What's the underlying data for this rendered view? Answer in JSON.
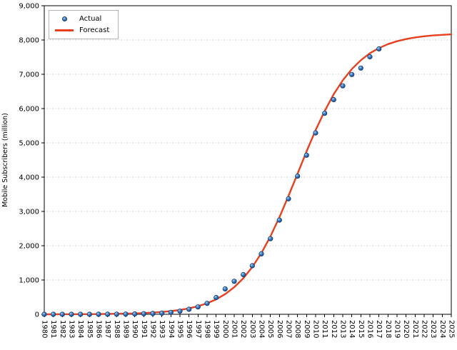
{
  "chart_data": {
    "type": "line",
    "title": "",
    "xlabel": "",
    "ylabel": "Mobile Subscribers (million)",
    "xlim": [
      1980,
      2025
    ],
    "ylim": [
      0,
      9000
    ],
    "y_ticks": [
      0,
      1000,
      2000,
      3000,
      4000,
      5000,
      6000,
      7000,
      8000,
      9000
    ],
    "x_tick_step": 1,
    "grid": "horizontal-dashed",
    "legend_position": "top-left",
    "series": [
      {
        "name": "Actual",
        "type": "scatter",
        "marker": "circle",
        "color": "#2e6db4",
        "x": [
          1980,
          1981,
          1982,
          1983,
          1984,
          1985,
          1986,
          1987,
          1988,
          1989,
          1990,
          1991,
          1992,
          1993,
          1994,
          1995,
          1996,
          1997,
          1998,
          1999,
          2000,
          2001,
          2002,
          2003,
          2004,
          2005,
          2006,
          2007,
          2008,
          2009,
          2010,
          2011,
          2012,
          2013,
          2014,
          2015,
          2016,
          2017
        ],
        "values": [
          0,
          0,
          0,
          0,
          1,
          1,
          2,
          3,
          4,
          7,
          11,
          16,
          23,
          34,
          56,
          91,
          145,
          215,
          318,
          490,
          740,
          962,
          1157,
          1417,
          1763,
          2205,
          2745,
          3368,
          4030,
          4640,
          5290,
          5863,
          6261,
          6662,
          6993,
          7182,
          7511,
          7740
        ]
      },
      {
        "name": "Forecast",
        "type": "line",
        "color": "#e8401f",
        "x": [
          1980,
          1981,
          1982,
          1983,
          1984,
          1985,
          1986,
          1987,
          1988,
          1989,
          1990,
          1991,
          1992,
          1993,
          1994,
          1995,
          1996,
          1997,
          1998,
          1999,
          2000,
          2001,
          2002,
          2003,
          2004,
          2005,
          2006,
          2007,
          2008,
          2009,
          2010,
          2011,
          2012,
          2013,
          2014,
          2015,
          2016,
          2017,
          2018,
          2019,
          2020,
          2021,
          2022,
          2023,
          2024,
          2025
        ],
        "values": [
          1,
          1,
          2,
          3,
          4,
          5,
          7,
          10,
          14,
          19,
          26,
          35,
          49,
          67,
          92,
          126,
          173,
          236,
          321,
          436,
          588,
          789,
          1049,
          1378,
          1784,
          2270,
          2831,
          3450,
          4100,
          4750,
          5370,
          5929,
          6416,
          6822,
          7152,
          7411,
          7612,
          7764,
          7879,
          7964,
          8027,
          8074,
          8108,
          8133,
          8151,
          8165
        ]
      }
    ]
  }
}
